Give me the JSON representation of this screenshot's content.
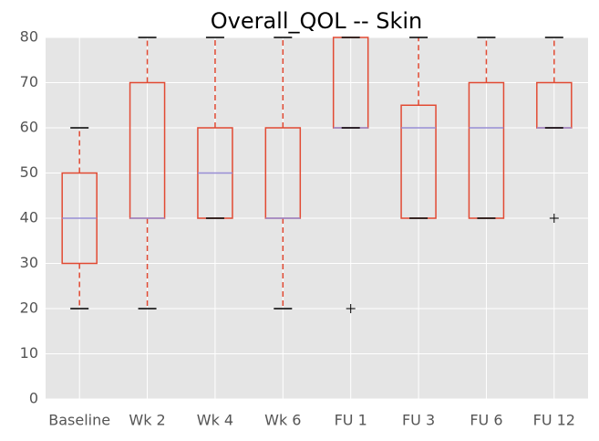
{
  "chart_data": {
    "type": "box",
    "title": "Overall_QOL -- Skin",
    "categories": [
      "Baseline",
      "Wk 2",
      "Wk 4",
      "Wk 6",
      "FU 1",
      "FU 3",
      "FU 6",
      "FU 12"
    ],
    "boxes": [
      {
        "low": 20,
        "q1": 30,
        "median": 40,
        "q3": 50,
        "high": 60,
        "outliers": []
      },
      {
        "low": 20,
        "q1": 40,
        "median": 40,
        "q3": 70,
        "high": 80,
        "outliers": []
      },
      {
        "low": 40,
        "q1": 40,
        "median": 50,
        "q3": 60,
        "high": 80,
        "outliers": []
      },
      {
        "low": 20,
        "q1": 40,
        "median": 40,
        "q3": 60,
        "high": 80,
        "outliers": []
      },
      {
        "low": 60,
        "q1": 60,
        "median": 60,
        "q3": 80,
        "high": 80,
        "outliers": [
          20
        ]
      },
      {
        "low": 40,
        "q1": 40,
        "median": 60,
        "q3": 65,
        "high": 80,
        "outliers": []
      },
      {
        "low": 40,
        "q1": 40,
        "median": 60,
        "q3": 70,
        "high": 80,
        "outliers": []
      },
      {
        "low": 60,
        "q1": 60,
        "median": 60,
        "q3": 70,
        "high": 80,
        "outliers": [
          40
        ]
      }
    ],
    "box_color": "#E24A33",
    "median_color": "#988ED5",
    "cap_color": "#000000",
    "ylim": [
      0,
      80
    ],
    "yticks": [
      0,
      10,
      20,
      30,
      40,
      50,
      60,
      70,
      80
    ],
    "grid": true
  }
}
